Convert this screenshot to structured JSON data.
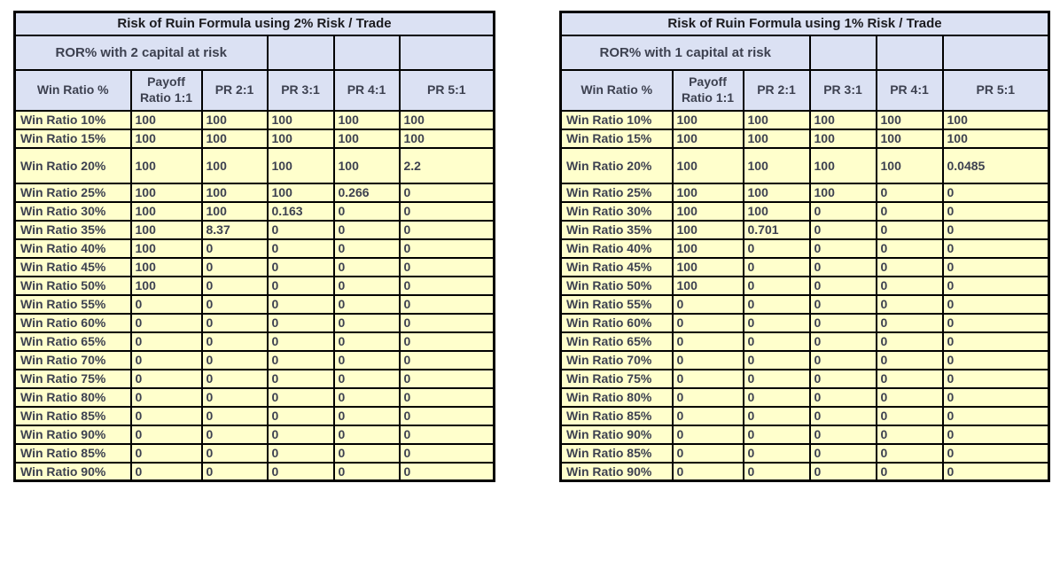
{
  "colors": {
    "page_bg": "#ffffff",
    "header_bg": "#dbe1f3",
    "data_cell_bg": "#ffffcc",
    "border": "#000000",
    "title_text": "#1b1b1f",
    "body_text": "#3d4150"
  },
  "tables": [
    {
      "title": "Risk of Ruin Formula using 2% Risk / Trade",
      "subtitle": "ROR% with 2 capital at risk",
      "headers": [
        "Win Ratio %",
        "Payoff Ratio 1:1",
        "PR 2:1",
        "PR 3:1",
        "PR 4:1",
        "PR 5:1"
      ],
      "rows": [
        {
          "label": "Win Ratio 10%",
          "values": [
            "100",
            "100",
            "100",
            "100",
            "100"
          ]
        },
        {
          "label": "Win Ratio 15%",
          "values": [
            "100",
            "100",
            "100",
            "100",
            "100"
          ]
        },
        {
          "label": "Win Ratio 20%",
          "values": [
            "100",
            "100",
            "100",
            "100",
            "2.2"
          ],
          "tall": true
        },
        {
          "label": "Win Ratio 25%",
          "values": [
            "100",
            "100",
            "100",
            "0.266",
            "0"
          ]
        },
        {
          "label": "Win Ratio 30%",
          "values": [
            "100",
            "100",
            "0.163",
            "0",
            "0"
          ]
        },
        {
          "label": "Win Ratio 35%",
          "values": [
            "100",
            "8.37",
            "0",
            "0",
            "0"
          ]
        },
        {
          "label": "Win Ratio 40%",
          "values": [
            "100",
            "0",
            "0",
            "0",
            "0"
          ]
        },
        {
          "label": "Win Ratio 45%",
          "values": [
            "100",
            "0",
            "0",
            "0",
            "0"
          ]
        },
        {
          "label": "Win Ratio 50%",
          "values": [
            "100",
            "0",
            "0",
            "0",
            "0"
          ]
        },
        {
          "label": "Win Ratio 55%",
          "values": [
            "0",
            "0",
            "0",
            "0",
            "0"
          ]
        },
        {
          "label": "Win Ratio 60%",
          "values": [
            "0",
            "0",
            "0",
            "0",
            "0"
          ]
        },
        {
          "label": "Win Ratio 65%",
          "values": [
            "0",
            "0",
            "0",
            "0",
            "0"
          ]
        },
        {
          "label": "Win Ratio 70%",
          "values": [
            "0",
            "0",
            "0",
            "0",
            "0"
          ]
        },
        {
          "label": "Win Ratio 75%",
          "values": [
            "0",
            "0",
            "0",
            "0",
            "0"
          ]
        },
        {
          "label": "Win Ratio 80%",
          "values": [
            "0",
            "0",
            "0",
            "0",
            "0"
          ]
        },
        {
          "label": "Win Ratio 85%",
          "values": [
            "0",
            "0",
            "0",
            "0",
            "0"
          ]
        },
        {
          "label": "Win Ratio 90%",
          "values": [
            "0",
            "0",
            "0",
            "0",
            "0"
          ]
        },
        {
          "label": "Win Ratio 85%",
          "values": [
            "0",
            "0",
            "0",
            "0",
            "0"
          ]
        },
        {
          "label": "Win Ratio 90%",
          "values": [
            "0",
            "0",
            "0",
            "0",
            "0"
          ]
        }
      ]
    },
    {
      "title": "Risk of Ruin Formula using 1% Risk / Trade",
      "subtitle": "ROR% with 1 capital at risk",
      "headers": [
        "Win Ratio %",
        "Payoff Ratio 1:1",
        "PR 2:1",
        "PR 3:1",
        "PR 4:1",
        "PR 5:1"
      ],
      "rows": [
        {
          "label": "Win Ratio 10%",
          "values": [
            "100",
            "100",
            "100",
            "100",
            "100"
          ]
        },
        {
          "label": "Win Ratio 15%",
          "values": [
            "100",
            "100",
            "100",
            "100",
            "100"
          ]
        },
        {
          "label": "Win Ratio 20%",
          "values": [
            "100",
            "100",
            "100",
            "100",
            "0.0485"
          ],
          "tall": true
        },
        {
          "label": "Win Ratio 25%",
          "values": [
            "100",
            "100",
            "100",
            "0",
            "0"
          ]
        },
        {
          "label": "Win Ratio 30%",
          "values": [
            "100",
            "100",
            "0",
            "0",
            "0"
          ]
        },
        {
          "label": "Win Ratio 35%",
          "values": [
            "100",
            "0.701",
            "0",
            "0",
            "0"
          ]
        },
        {
          "label": "Win Ratio 40%",
          "values": [
            "100",
            "0",
            "0",
            "0",
            "0"
          ]
        },
        {
          "label": "Win Ratio 45%",
          "values": [
            "100",
            "0",
            "0",
            "0",
            "0"
          ]
        },
        {
          "label": "Win Ratio 50%",
          "values": [
            "100",
            "0",
            "0",
            "0",
            "0"
          ]
        },
        {
          "label": "Win Ratio 55%",
          "values": [
            "0",
            "0",
            "0",
            "0",
            "0"
          ]
        },
        {
          "label": "Win Ratio 60%",
          "values": [
            "0",
            "0",
            "0",
            "0",
            "0"
          ]
        },
        {
          "label": "Win Ratio 65%",
          "values": [
            "0",
            "0",
            "0",
            "0",
            "0"
          ]
        },
        {
          "label": "Win Ratio 70%",
          "values": [
            "0",
            "0",
            "0",
            "0",
            "0"
          ]
        },
        {
          "label": "Win Ratio 75%",
          "values": [
            "0",
            "0",
            "0",
            "0",
            "0"
          ]
        },
        {
          "label": "Win Ratio 80%",
          "values": [
            "0",
            "0",
            "0",
            "0",
            "0"
          ]
        },
        {
          "label": "Win Ratio 85%",
          "values": [
            "0",
            "0",
            "0",
            "0",
            "0"
          ]
        },
        {
          "label": "Win Ratio 90%",
          "values": [
            "0",
            "0",
            "0",
            "0",
            "0"
          ]
        },
        {
          "label": "Win Ratio 85%",
          "values": [
            "0",
            "0",
            "0",
            "0",
            "0"
          ]
        },
        {
          "label": "Win Ratio 90%",
          "values": [
            "0",
            "0",
            "0",
            "0",
            "0"
          ]
        }
      ]
    }
  ]
}
